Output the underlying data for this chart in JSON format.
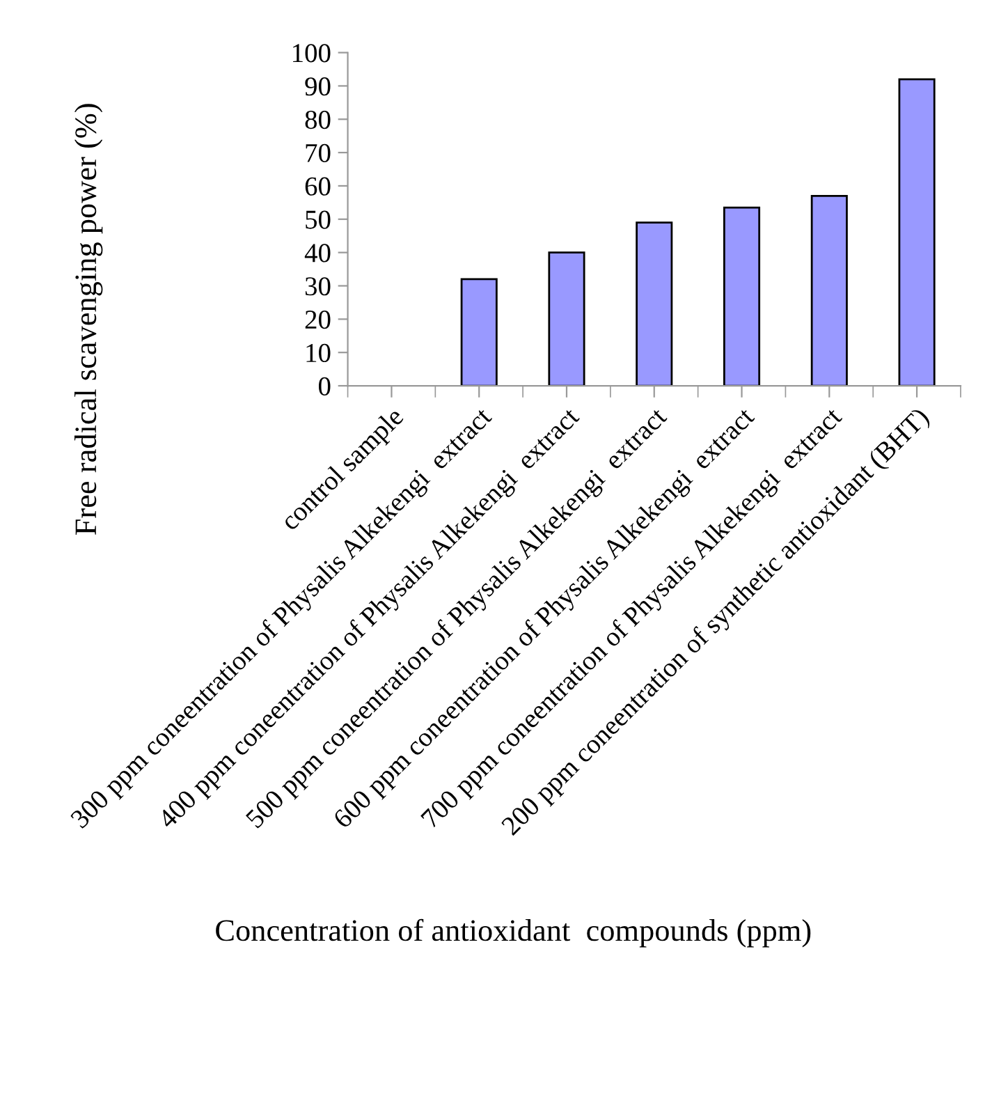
{
  "chart_data": {
    "type": "bar",
    "xlabel": "Concentration of antioxidant  compounds (ppm)",
    "ylabel": "Free radical scavenging power (%)",
    "categories": [
      "control sample",
      "300 ppm coneentration of Physalis Alkekengi  extract",
      "400 ppm coneentration of Physalis Alkekengi  extract",
      "500 ppm coneentration of Physalis Alkekengi  extract",
      "600 ppm coneentration of Physalis Alkekengi  extract",
      "700 ppm coneentration of Physalis Alkekengi  extract",
      "200 ppm coneentration of synthetic antioxidant (BHT)"
    ],
    "values": [
      0,
      32,
      40,
      49,
      53.5,
      57,
      92
    ],
    "color": "#9999ff",
    "ylim": [
      0,
      100
    ],
    "yticks": [
      0,
      10,
      20,
      30,
      40,
      50,
      60,
      70,
      80,
      90,
      100
    ],
    "grid": false,
    "legend": false
  }
}
